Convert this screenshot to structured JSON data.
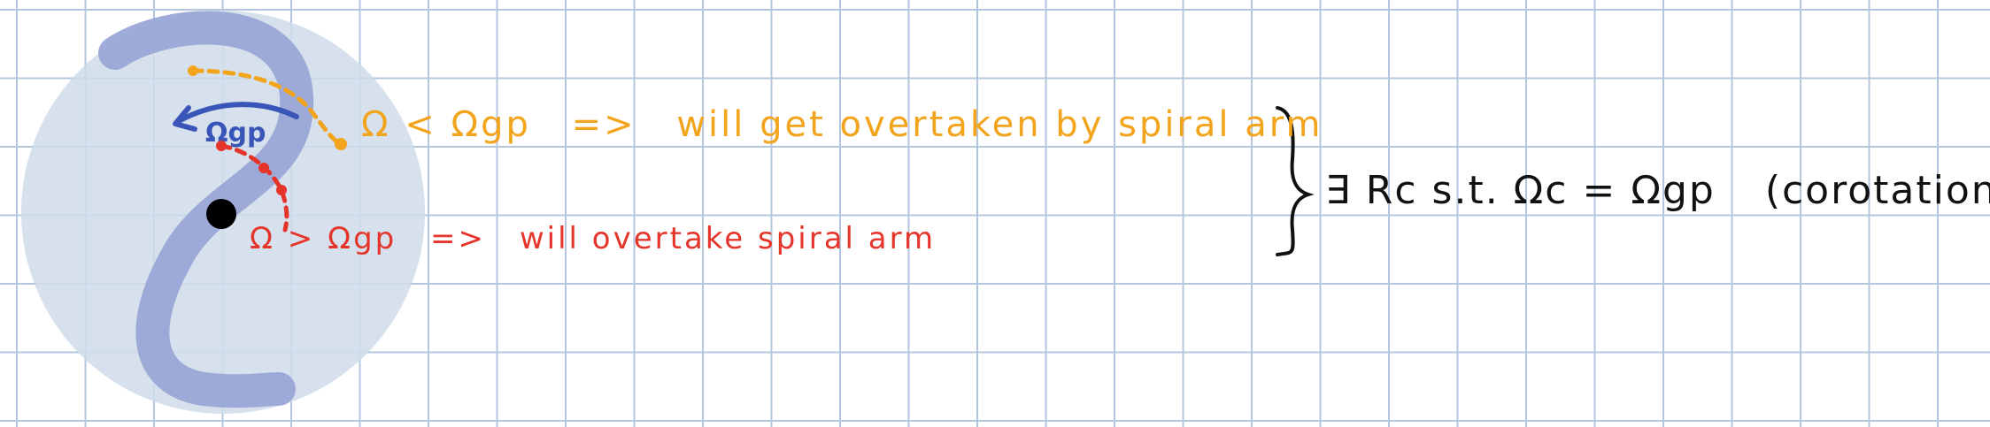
{
  "colors": {
    "grid": "#b3c6de",
    "disk": "#cfdcea",
    "arm": "#9aa6d6",
    "omega_gp": "#3a55b8",
    "slow_orbit": "#f2a41c",
    "fast_orbit": "#e5352b",
    "text": "#111111",
    "black_hole": "#000000"
  },
  "icons": {
    "center": "black-dot",
    "rotation": "curved-arrow-left",
    "brace": "right-curly-brace"
  },
  "labels": {
    "omega_gp": "Ωgp",
    "slow_case": "Ω < Ωgp",
    "slow_arrow": "=>",
    "slow_result": "will get overtaken by spiral arm",
    "fast_case": "Ω > Ωgp",
    "fast_arrow": "=>",
    "fast_result": "will overtake spiral arm",
    "conclusion": "∃ Rc  s.t.  Ωc = Ωgp",
    "conclusion_note": "(corotation)"
  }
}
